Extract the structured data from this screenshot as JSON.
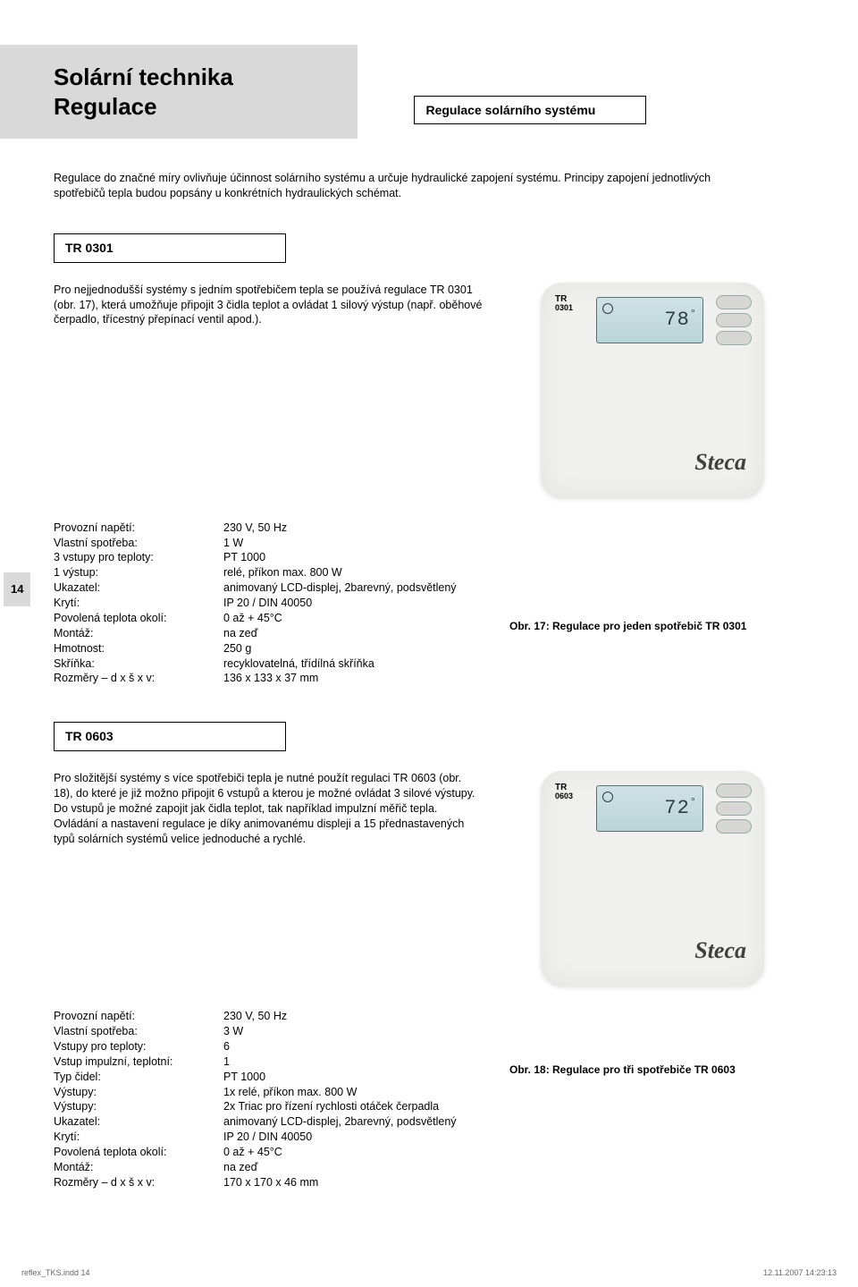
{
  "colors": {
    "page_bg": "#ffffff",
    "header_bg": "#d9d9d9",
    "text": "#000000",
    "lcd_bg_top": "#cfe3e6",
    "lcd_bg_bottom": "#b9d4d7",
    "lcd_border": "#5c6e70",
    "device_bg": "#f0f0ee",
    "btn_bg": "#d6d6d4",
    "footer_text": "#666666"
  },
  "typography": {
    "body_pt": 12.5,
    "h1_pt": 26,
    "section_label_pt": 14,
    "caption_pt": 12,
    "footer_pt": 9
  },
  "header": {
    "line1": "Solární technika",
    "line2": "Regulace"
  },
  "section1": {
    "label": "Regulace solárního systému",
    "paragraph": "Regulace do značné míry ovlivňuje účinnost solárního systému a určuje hydraulické zapojení systému. Principy zapojení jednotlivých spotřebičů tepla budou popsány u konkrétních hydraulických schémat."
  },
  "page_number": "14",
  "tr0301": {
    "label": "TR 0301",
    "device": {
      "badge_top": "TR",
      "badge_model": "0301",
      "lcd_reading": "78",
      "lcd_unit": "°",
      "brand": "Steca"
    },
    "paragraph": "Pro nejjednodušší systémy s jedním spotřebičem tepla se používá regulace TR 0301 (obr. 17), která umožňuje připojit 3 čidla teplot a ovládat 1 silový výstup (např. oběhové čerpadlo, třícestný přepínací ventil apod.).",
    "spec_rows": [
      {
        "k": "Provozní napětí:",
        "v": "230 V, 50 Hz"
      },
      {
        "k": "Vlastní spotřeba:",
        "v": "1 W"
      },
      {
        "k": "3 vstupy pro teploty:",
        "v": "PT 1000"
      },
      {
        "k": "1 výstup:",
        "v": "relé, příkon max. 800 W"
      },
      {
        "k": "Ukazatel:",
        "v": "animovaný LCD-displej, 2barevný, podsvětlený"
      },
      {
        "k": "Krytí:",
        "v": "IP 20 / DIN 40050"
      },
      {
        "k": "Povolená teplota okolí:",
        "v": "0 až + 45°C"
      },
      {
        "k": "Montáž:",
        "v": "na zeď"
      },
      {
        "k": "Hmotnost:",
        "v": "250 g"
      },
      {
        "k": "Skříňka:",
        "v": "recyklovatelná, třídílná skříňka"
      },
      {
        "k": "Rozměry – d x š x v:",
        "v": "136 x 133 x 37 mm"
      }
    ],
    "caption": "Obr. 17: Regulace pro jeden spotřebič TR 0301"
  },
  "tr0603": {
    "label": "TR 0603",
    "device": {
      "badge_top": "TR",
      "badge_model": "0603",
      "lcd_reading": "72",
      "lcd_unit": "°",
      "brand": "Steca"
    },
    "paragraph": "Pro složitější systémy s více spotřebiči tepla je nutné použít regulaci TR 0603 (obr. 18), do které je již možno připojit 6 vstupů a kterou je možné ovládat 3 silové výstupy. Do vstupů je možné zapojit jak čidla teplot, tak například impulzní měřič tepla. Ovládání a nastavení regulace je díky animovanému displeji a 15 přednastavených typů solárních systémů velice jednoduché a rychlé.",
    "spec_rows": [
      {
        "k": "Provozní napětí:",
        "v": "230 V, 50 Hz"
      },
      {
        "k": "Vlastní spotřeba:",
        "v": "3 W"
      },
      {
        "k": "Vstupy pro teploty:",
        "v": "6"
      },
      {
        "k": "Vstup impulzní, teplotní:",
        "v": "1"
      },
      {
        "k": "Typ čidel:",
        "v": "PT 1000"
      },
      {
        "k": "Výstupy:",
        "v": "1x relé, příkon max. 800 W"
      },
      {
        "k": "Výstupy:",
        "v": "2x Triac pro řízení rychlosti otáček čerpadla"
      },
      {
        "k": "Ukazatel:",
        "v": "animovaný LCD-displej, 2barevný, podsvětlený"
      },
      {
        "k": "Krytí:",
        "v": "IP 20 / DIN 40050"
      },
      {
        "k": "Povolená teplota okolí:",
        "v": "0 až + 45°C"
      },
      {
        "k": "Montáž:",
        "v": "na zeď"
      },
      {
        "k": "Rozměry – d x š x v:",
        "v": "170 x 170 x 46 mm"
      }
    ],
    "caption": "Obr. 18: Regulace pro tři spotřebiče TR 0603"
  },
  "footer": {
    "left": "reflex_TKS.indd   14",
    "right": "12.11.2007   14:23:13"
  }
}
